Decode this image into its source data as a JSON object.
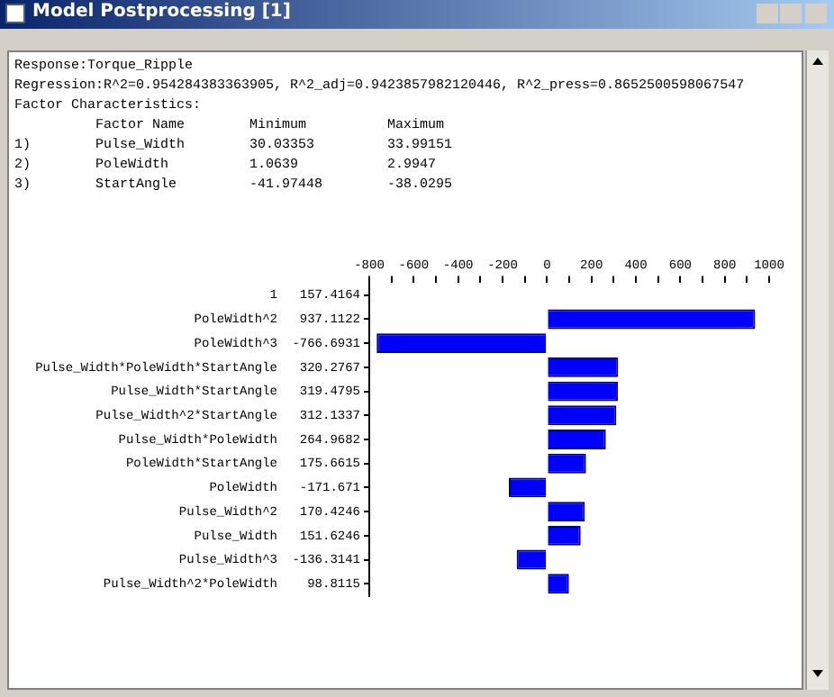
{
  "chart_data": {
    "type": "bar",
    "orientation": "horizontal",
    "title": "Model Postprocessing [1]",
    "annotations": [
      "Response:Torque_Ripple",
      "Regression:R^2=0.954284383363905, R^2_adj=0.9423857982120446, R^2_press=0.8652500598067547",
      "Factor Characteristics:",
      "          Factor Name        Minimum          Maximum",
      "1)        Pulse_Width        30.03353         33.99151",
      "2)        PoleWidth          1.0639           2.9947",
      "3)        StartAngle         -41.97448        -38.0295"
    ],
    "categories": [
      "1",
      "PoleWidth^2",
      "PoleWidth^3",
      "Pulse_Width*PoleWidth*StartAngle",
      "Pulse_Width*StartAngle",
      "Pulse_Width^2*StartAngle",
      "Pulse_Width*PoleWidth",
      "PoleWidth*StartAngle",
      "PoleWidth",
      "Pulse_Width^2",
      "Pulse_Width",
      "Pulse_Width^3",
      "Pulse_Width^2*PoleWidth"
    ],
    "values": [
      null,
      937.1122,
      -766.6931,
      320.2767,
      319.4795,
      312.1337,
      264.9682,
      175.6615,
      -171.671,
      170.4246,
      151.6246,
      -136.3141,
      98.8115
    ],
    "value_labels": [
      "157.4164",
      "937.1122",
      "-766.6931",
      "320.2767",
      "319.4795",
      "312.1337",
      "264.9682",
      "175.6615",
      "-171.671",
      "170.4246",
      "151.6246",
      "-136.3141",
      "98.8115"
    ],
    "color": "#0000ff",
    "xlim": [
      -800,
      1000
    ],
    "xticks": [
      -800,
      {
        "value": -700,
        "label": null
      },
      -600,
      {
        "value": -500,
        "label": null
      },
      -400,
      {
        "value": -300,
        "label": null
      },
      -200,
      {
        "value": -100,
        "label": null
      },
      0,
      {
        "value": 100,
        "label": null
      },
      200,
      {
        "value": 300,
        "label": null
      },
      400,
      {
        "value": 500,
        "label": null
      },
      600,
      {
        "value": 700,
        "label": null
      },
      800,
      {
        "value": 900,
        "label": null
      },
      1000
    ],
    "grid": false,
    "legend": false
  }
}
